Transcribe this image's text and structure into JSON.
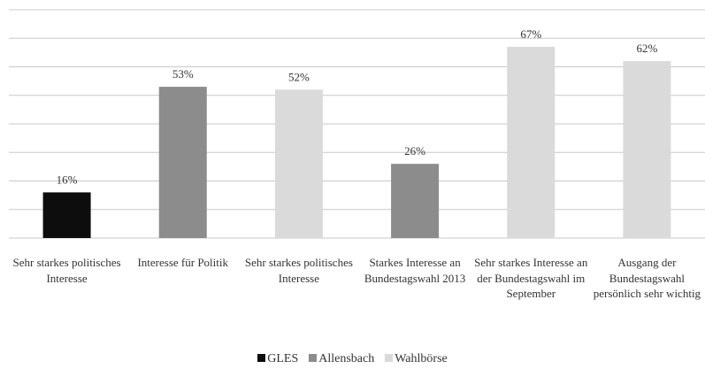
{
  "chart_data": {
    "type": "bar",
    "categories": [
      "Sehr starkes politisches Interesse",
      "Interesse für Politik",
      "Sehr starkes politisches Interesse",
      "Starkes Interesse an Bundestagswahl 2013",
      "Sehr starkes Interesse an der Bundestagswahl im September",
      "Ausgang der Bundestagswahl persönlich sehr wichtig"
    ],
    "series": [
      {
        "name": "GLES",
        "color": "#0d0d0d",
        "values": [
          16,
          null,
          null,
          null,
          null,
          null
        ],
        "value_labels": [
          "16%",
          null,
          null,
          null,
          null,
          null
        ]
      },
      {
        "name": "Allensbach",
        "color": "#8c8c8c",
        "values": [
          null,
          53,
          null,
          26,
          null,
          null
        ],
        "value_labels": [
          null,
          "53%",
          null,
          "26%",
          null,
          null
        ]
      },
      {
        "name": "Wahlbörse",
        "color": "#dadada",
        "values": [
          null,
          null,
          52,
          null,
          67,
          62
        ],
        "value_labels": [
          null,
          null,
          "52%",
          null,
          "67%",
          "62%"
        ]
      }
    ],
    "ylim": [
      0,
      80
    ],
    "yticks": [
      0,
      10,
      20,
      30,
      40,
      50,
      60,
      70,
      80
    ],
    "grid": true,
    "legend": "bottom"
  }
}
